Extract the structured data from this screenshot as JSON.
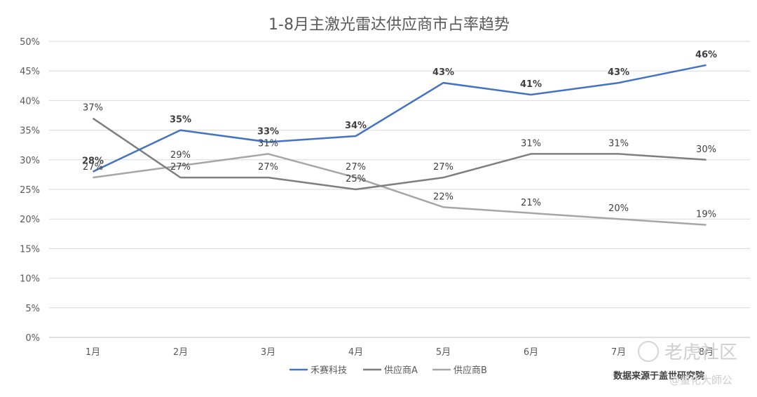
{
  "chart_data": {
    "type": "line",
    "title": "1-8月主激光雷达供应商市占率趋势",
    "categories": [
      "1月",
      "2月",
      "3月",
      "4月",
      "5月",
      "6月",
      "7月",
      "8月"
    ],
    "y_ticks": [
      "0%",
      "5%",
      "10%",
      "15%",
      "20%",
      "25%",
      "30%",
      "35%",
      "40%",
      "45%",
      "50%"
    ],
    "ylim": [
      0,
      50
    ],
    "grid": true,
    "legend_position": "bottom",
    "series": [
      {
        "name": "禾赛科技",
        "color": "#4472c4",
        "values": [
          28,
          35,
          33,
          34,
          43,
          41,
          43,
          46
        ],
        "labels": [
          "28%",
          "35%",
          "33%",
          "34%",
          "43%",
          "41%",
          "43%",
          "46%"
        ]
      },
      {
        "name": "供应商A",
        "color": "#7f7f7f",
        "values": [
          37,
          27,
          27,
          25,
          27,
          31,
          31,
          30
        ],
        "labels": [
          "37%",
          "27%",
          "27%",
          "25%",
          "27%",
          "31%",
          "31%",
          "30%"
        ]
      },
      {
        "name": "供应商B",
        "color": "#a6a6a6",
        "values": [
          27,
          29,
          31,
          27,
          22,
          21,
          20,
          19
        ],
        "labels": [
          "27%",
          "29%",
          "31%",
          "27%",
          "22%",
          "21%",
          "20%",
          "19%"
        ]
      }
    ]
  },
  "source_note": "数据来源于盖世研究院",
  "watermark": {
    "brand": "老虎社区",
    "handle": "@董化大師公"
  },
  "colors": {
    "grid": "#d9d9d9",
    "axis": "#bfbfbf"
  }
}
